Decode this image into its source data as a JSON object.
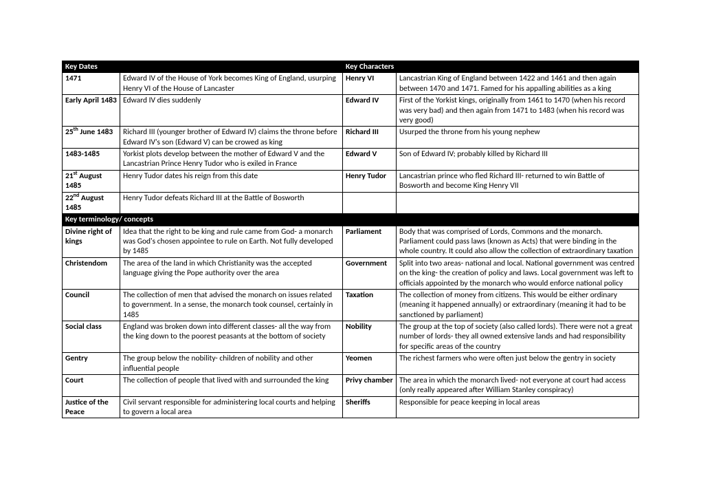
{
  "sections": {
    "dates_header": "Key Dates",
    "characters_header": "Key Characters",
    "terminology_header": "Key terminology/ concepts"
  },
  "dates": [
    {
      "k": "1471",
      "v": "Edward IV of the House of York becomes King of England, usurping Henry VI of the House of Lancaster"
    },
    {
      "k": "Early April 1483",
      "v": "Edward IV dies suddenly"
    },
    {
      "k": "25<sup>th</sup> June 1483",
      "v": "Richard III (younger brother of Edward IV) claims the throne before Edward IV's son (Edward V) can be crowed as king"
    },
    {
      "k": "1483-1485",
      "v": "Yorkist plots develop between the mother of Edward V and the Lancastrian Prince Henry Tudor who is exiled in France"
    },
    {
      "k": "21<sup>st</sup> August 1485",
      "v": "Henry Tudor dates his reign from this date"
    },
    {
      "k": "22<sup>nd</sup> August 1485",
      "v": "Henry Tudor defeats Richard III at the Battle of Bosworth"
    }
  ],
  "characters": [
    {
      "k": "Henry VI",
      "v": "Lancastrian King of England between 1422 and 1461 and then again between 1470 and 1471. Famed for his appalling abilities as a king"
    },
    {
      "k": "Edward IV",
      "v": "First of the Yorkist kings, originally from 1461 to 1470 (when his record was very bad) and then again from 1471 to 1483 (when his record was very good)"
    },
    {
      "k": "Richard III",
      "v": "Usurped the throne from his young nephew"
    },
    {
      "k": "Edward V",
      "v": "Son of Edward IV; probably killed by Richard III"
    },
    {
      "k": "Henry Tudor",
      "v": "Lancastrian prince who fled Richard III- returned to win Battle of Bosworth and become King Henry VII"
    },
    {
      "k": "",
      "v": ""
    }
  ],
  "terms_left": [
    {
      "k": "Divine right of kings",
      "v": "Idea that the right to be king and rule came from God- a monarch was God's chosen appointee to rule on Earth. Not fully developed by 1485"
    },
    {
      "k": "Christendom",
      "v": "The area of the land in which Christianity was the accepted language giving the Pope authority over the area"
    },
    {
      "k": "Council",
      "v": "The collection of men that advised the monarch on issues related to government. In a sense, the monarch took counsel, certainly in 1485"
    },
    {
      "k": "Social class",
      "v": "England was broken down into different classes- all the way from the king down to the poorest peasants at the bottom of society"
    },
    {
      "k": "Gentry",
      "v": "The group below the nobility- children of nobility and other influential people"
    },
    {
      "k": "Court",
      "v": "The collection of people that lived with and surrounded the king"
    },
    {
      "k": "Justice of the Peace",
      "v": "Civil servant responsible for administering local courts and helping to govern a local area"
    }
  ],
  "terms_right": [
    {
      "k": "Parliament",
      "v": "Body that was comprised of Lords, Commons and the monarch. Parliament could pass laws (known as Acts) that were binding in the whole country. It could also allow the collection of extraordinary taxation"
    },
    {
      "k": "Government",
      "v": "Split into two areas- national and local. National government was centred on the king- the creation of policy and laws. Local government was left to officials appointed by the monarch who would enforce national policy"
    },
    {
      "k": "Taxation",
      "v": "The collection of money from citizens. This would be either ordinary (meaning it happened annually) or extraordinary (meaning it had to be sanctioned by parliament)"
    },
    {
      "k": "Nobility",
      "v": "The group at the top of society (also called lords). There were not a great number of lords- they all owned extensive lands and had responsibility for specific areas of the country"
    },
    {
      "k": "Yeomen",
      "v": "The richest farmers who were often just below the gentry in society"
    },
    {
      "k": "Privy chamber",
      "v": "The area in which the monarch lived- not everyone at court had access (only really appeared after William Stanley conspiracy)"
    },
    {
      "k": "Sheriffs",
      "v": "Responsible for peace keeping in local areas"
    }
  ]
}
